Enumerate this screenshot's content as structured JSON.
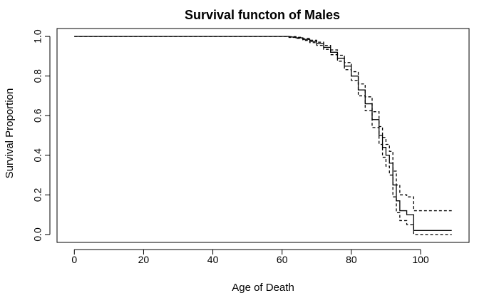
{
  "chart_data": {
    "type": "line",
    "title": "Survival functon of Males",
    "xlabel": "Age of Death",
    "ylabel": "Survival Proportion",
    "xlim": [
      -5,
      114
    ],
    "ylim": [
      -0.04,
      1.04
    ],
    "x_ticks": [
      0,
      20,
      40,
      60,
      80,
      100
    ],
    "y_ticks": [
      0.0,
      0.2,
      0.4,
      0.6,
      0.8,
      1.0
    ],
    "x_tick_labels": [
      "0",
      "20",
      "40",
      "60",
      "80",
      "100"
    ],
    "y_tick_labels": [
      "0.0",
      "0.2",
      "0.4",
      "0.6",
      "0.8",
      "1.0"
    ],
    "grid": false,
    "series": [
      {
        "style": "solid",
        "points": [
          [
            0,
            1.0
          ],
          [
            60,
            1.0
          ],
          [
            62,
            0.997
          ],
          [
            64,
            0.993
          ],
          [
            66,
            0.985
          ],
          [
            68,
            0.975
          ],
          [
            70,
            0.963
          ],
          [
            72,
            0.945
          ],
          [
            74,
            0.92
          ],
          [
            76,
            0.89
          ],
          [
            78,
            0.85
          ],
          [
            80,
            0.8
          ],
          [
            82,
            0.73
          ],
          [
            84,
            0.66
          ],
          [
            86,
            0.58
          ],
          [
            88,
            0.5
          ],
          [
            89,
            0.44
          ],
          [
            90,
            0.4
          ],
          [
            91,
            0.36
          ],
          [
            92,
            0.25
          ],
          [
            93,
            0.17
          ],
          [
            94,
            0.12
          ],
          [
            96,
            0.1
          ],
          [
            98,
            0.02
          ],
          [
            109,
            0.02
          ]
        ]
      },
      {
        "style": "dashed",
        "points": [
          [
            0,
            1.0
          ],
          [
            60,
            1.0
          ],
          [
            62,
            0.999
          ],
          [
            64,
            0.996
          ],
          [
            66,
            0.99
          ],
          [
            68,
            0.981
          ],
          [
            70,
            0.971
          ],
          [
            72,
            0.955
          ],
          [
            74,
            0.932
          ],
          [
            76,
            0.905
          ],
          [
            78,
            0.868
          ],
          [
            80,
            0.822
          ],
          [
            82,
            0.76
          ],
          [
            84,
            0.695
          ],
          [
            86,
            0.62
          ],
          [
            88,
            0.545
          ],
          [
            89,
            0.49
          ],
          [
            90,
            0.455
          ],
          [
            91,
            0.42
          ],
          [
            92,
            0.32
          ],
          [
            93,
            0.25
          ],
          [
            94,
            0.2
          ],
          [
            96,
            0.19
          ],
          [
            98,
            0.12
          ],
          [
            109,
            0.12
          ]
        ]
      },
      {
        "style": "dashed",
        "points": [
          [
            0,
            1.0
          ],
          [
            60,
            1.0
          ],
          [
            62,
            0.995
          ],
          [
            64,
            0.99
          ],
          [
            66,
            0.98
          ],
          [
            68,
            0.969
          ],
          [
            70,
            0.955
          ],
          [
            72,
            0.935
          ],
          [
            74,
            0.908
          ],
          [
            76,
            0.875
          ],
          [
            78,
            0.832
          ],
          [
            80,
            0.778
          ],
          [
            82,
            0.7
          ],
          [
            84,
            0.625
          ],
          [
            86,
            0.54
          ],
          [
            88,
            0.455
          ],
          [
            89,
            0.39
          ],
          [
            90,
            0.345
          ],
          [
            91,
            0.3
          ],
          [
            92,
            0.19
          ],
          [
            93,
            0.11
          ],
          [
            94,
            0.07
          ],
          [
            96,
            0.05
          ],
          [
            98,
            0.0
          ],
          [
            109,
            0.0
          ]
        ]
      }
    ]
  }
}
